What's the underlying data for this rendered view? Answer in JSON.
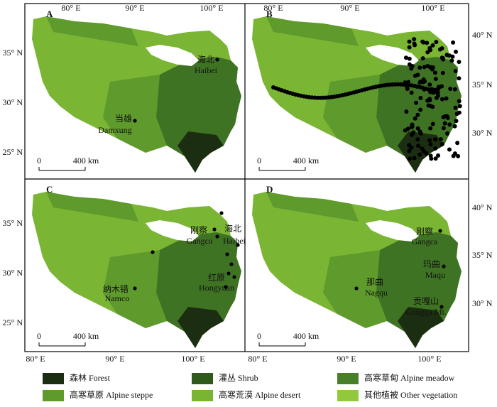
{
  "panels": [
    {
      "label": "A",
      "ticks": {
        "top": [
          "80° E",
          "90° E",
          "100° E"
        ],
        "left": [
          "35° N",
          "30° N",
          "25° N"
        ]
      },
      "sites": [
        {
          "zh": "海北",
          "en": "Haibei"
        },
        {
          "zh": "当雄",
          "en": "Damxung"
        }
      ],
      "scale": {
        "zero": "0",
        "distance": "400 km"
      }
    },
    {
      "label": "B",
      "ticks": {
        "top": [
          "80° E",
          "90° E",
          "100° E"
        ],
        "right": [
          "40° N",
          "35° N",
          "30° N"
        ]
      },
      "sites": [],
      "scale": {
        "zero": "0",
        "distance": "400 km"
      }
    },
    {
      "label": "C",
      "ticks": {
        "bottom": [
          "80° E",
          "90° E",
          "100° E"
        ],
        "left": [
          "35° N",
          "30° N",
          "25° N"
        ]
      },
      "sites": [
        {
          "zh": "刚察",
          "en": "Gangca"
        },
        {
          "zh": "海北",
          "en": "Haibei"
        },
        {
          "zh": "纳木错",
          "en": "Namco"
        },
        {
          "zh": "红原",
          "en": "Hongyuan"
        }
      ],
      "scale": {
        "zero": "0",
        "distance": "400 km"
      }
    },
    {
      "label": "D",
      "ticks": {
        "bottom": [
          "80° E",
          "90° E",
          "100° E"
        ],
        "right": [
          "40° N",
          "35° N",
          "30° N"
        ]
      },
      "sites": [
        {
          "zh": "刚察",
          "en": "Gangca"
        },
        {
          "zh": "玛曲",
          "en": "Maqu"
        },
        {
          "zh": "那曲",
          "en": "Nagqu"
        },
        {
          "zh": "贡嘎山",
          "en": "Gongga Mt."
        }
      ],
      "scale": {
        "zero": "0",
        "distance": "400 km"
      }
    }
  ],
  "legend": [
    {
      "label": "森林 Forest",
      "color": "#1c2e12"
    },
    {
      "label": "灌丛 Shrub",
      "color": "#2f5a1c"
    },
    {
      "label": "高寒草甸 Alpine meadow",
      "color": "#4a7f2a"
    },
    {
      "label": "高寒草原 Alpine steppe",
      "color": "#5f9a2c"
    },
    {
      "label": "高寒荒漠 Alpine desert",
      "color": "#79b532"
    },
    {
      "label": "其他植被 Other vegetation",
      "color": "#92c83e"
    }
  ]
}
